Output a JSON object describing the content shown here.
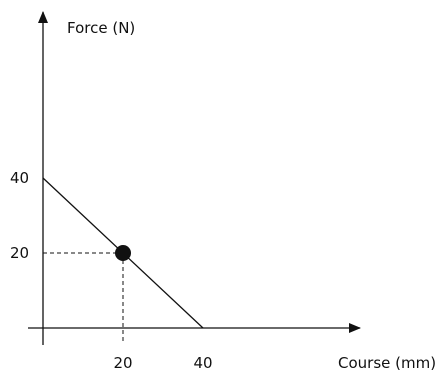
{
  "chart_data": {
    "type": "line",
    "ylabel": "Force (N)",
    "xlabel": "Course (mm)",
    "xlim": [
      0,
      40
    ],
    "ylim": [
      0,
      40
    ],
    "x_ticks": [
      20,
      40
    ],
    "y_ticks": [
      20,
      40
    ],
    "grid": false,
    "series": [
      {
        "x": [
          0,
          40
        ],
        "y": [
          40,
          0
        ]
      }
    ],
    "highlight_point": {
      "x": 20,
      "y": 20
    },
    "color": "#111111"
  }
}
